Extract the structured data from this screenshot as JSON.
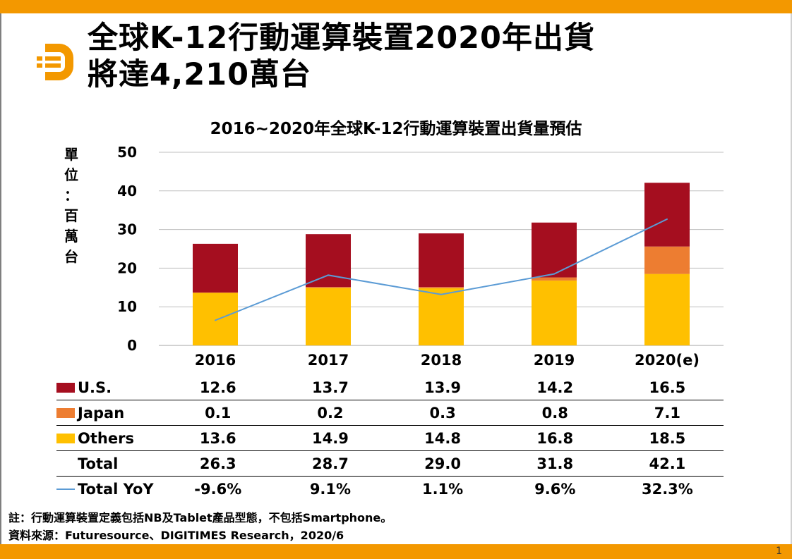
{
  "header": {
    "title_line1": "全球K-12行動運算裝置2020年出貨",
    "title_line2": "將達4,210萬台"
  },
  "logo": {
    "name": "digitimes-logo",
    "color": "#f39800"
  },
  "unit_label": [
    "單",
    "位",
    "：",
    "百",
    "萬",
    "台"
  ],
  "chart_data": {
    "type": "bar",
    "stacked": true,
    "title": "2016~2020年全球K-12行動運算裝置出貨量預估",
    "ylabel": "單位：百萬台",
    "xlabel": "",
    "categories": [
      "2016",
      "2017",
      "2018",
      "2019",
      "2020(e)"
    ],
    "ylim": [
      0,
      50
    ],
    "yticks": [
      0,
      10,
      20,
      30,
      40,
      50
    ],
    "grid": true,
    "series": [
      {
        "name": "Others",
        "color": "#ffc000",
        "values": [
          13.6,
          14.9,
          14.8,
          16.8,
          18.5
        ]
      },
      {
        "name": "Japan",
        "color": "#ed7d31",
        "values": [
          0.1,
          0.2,
          0.3,
          0.8,
          7.1
        ]
      },
      {
        "name": "U.S.",
        "color": "#a50e1f",
        "values": [
          12.6,
          13.7,
          13.9,
          14.2,
          16.5
        ]
      }
    ],
    "line_series": {
      "name": "Total YoY",
      "color": "#5b9bd5",
      "values": [
        -9.6,
        9.1,
        1.1,
        9.6,
        32.3
      ],
      "labels": [
        "-9.6%",
        "9.1%",
        "1.1%",
        "9.6%",
        "32.3%"
      ],
      "secondary_axis_range": [
        -20,
        60
      ]
    },
    "totals": [
      26.3,
      28.7,
      29.0,
      31.8,
      42.1
    ],
    "legend_placement": "data-table-bottom"
  },
  "table": {
    "rows": [
      {
        "label": "U.S.",
        "key": "us",
        "color": "#a50e1f",
        "marker": "box",
        "values": [
          "12.6",
          "13.7",
          "13.9",
          "14.2",
          "16.5"
        ]
      },
      {
        "label": "Japan",
        "key": "japan",
        "color": "#ed7d31",
        "marker": "box",
        "values": [
          "0.1",
          "0.2",
          "0.3",
          "0.8",
          "7.1"
        ]
      },
      {
        "label": "Others",
        "key": "others",
        "color": "#ffc000",
        "marker": "box",
        "values": [
          "13.6",
          "14.9",
          "14.8",
          "16.8",
          "18.5"
        ]
      },
      {
        "label": "Total",
        "key": "total",
        "color": "",
        "marker": "none",
        "values": [
          "26.3",
          "28.7",
          "29.0",
          "31.8",
          "42.1"
        ]
      },
      {
        "label": "Total YoY",
        "key": "yoy",
        "color": "#5b9bd5",
        "marker": "line",
        "values": [
          "-9.6%",
          "9.1%",
          "1.1%",
          "9.6%",
          "32.3%"
        ]
      }
    ]
  },
  "notes": {
    "note": "註：行動運算裝置定義包括NB及Tablet產品型態，不包括Smartphone。",
    "source": "資料來源：Futuresource、DIGITIMES Research，2020/6"
  },
  "page_number": "1",
  "colors": {
    "accent": "#f39800",
    "grid": "#bfbfbf"
  }
}
